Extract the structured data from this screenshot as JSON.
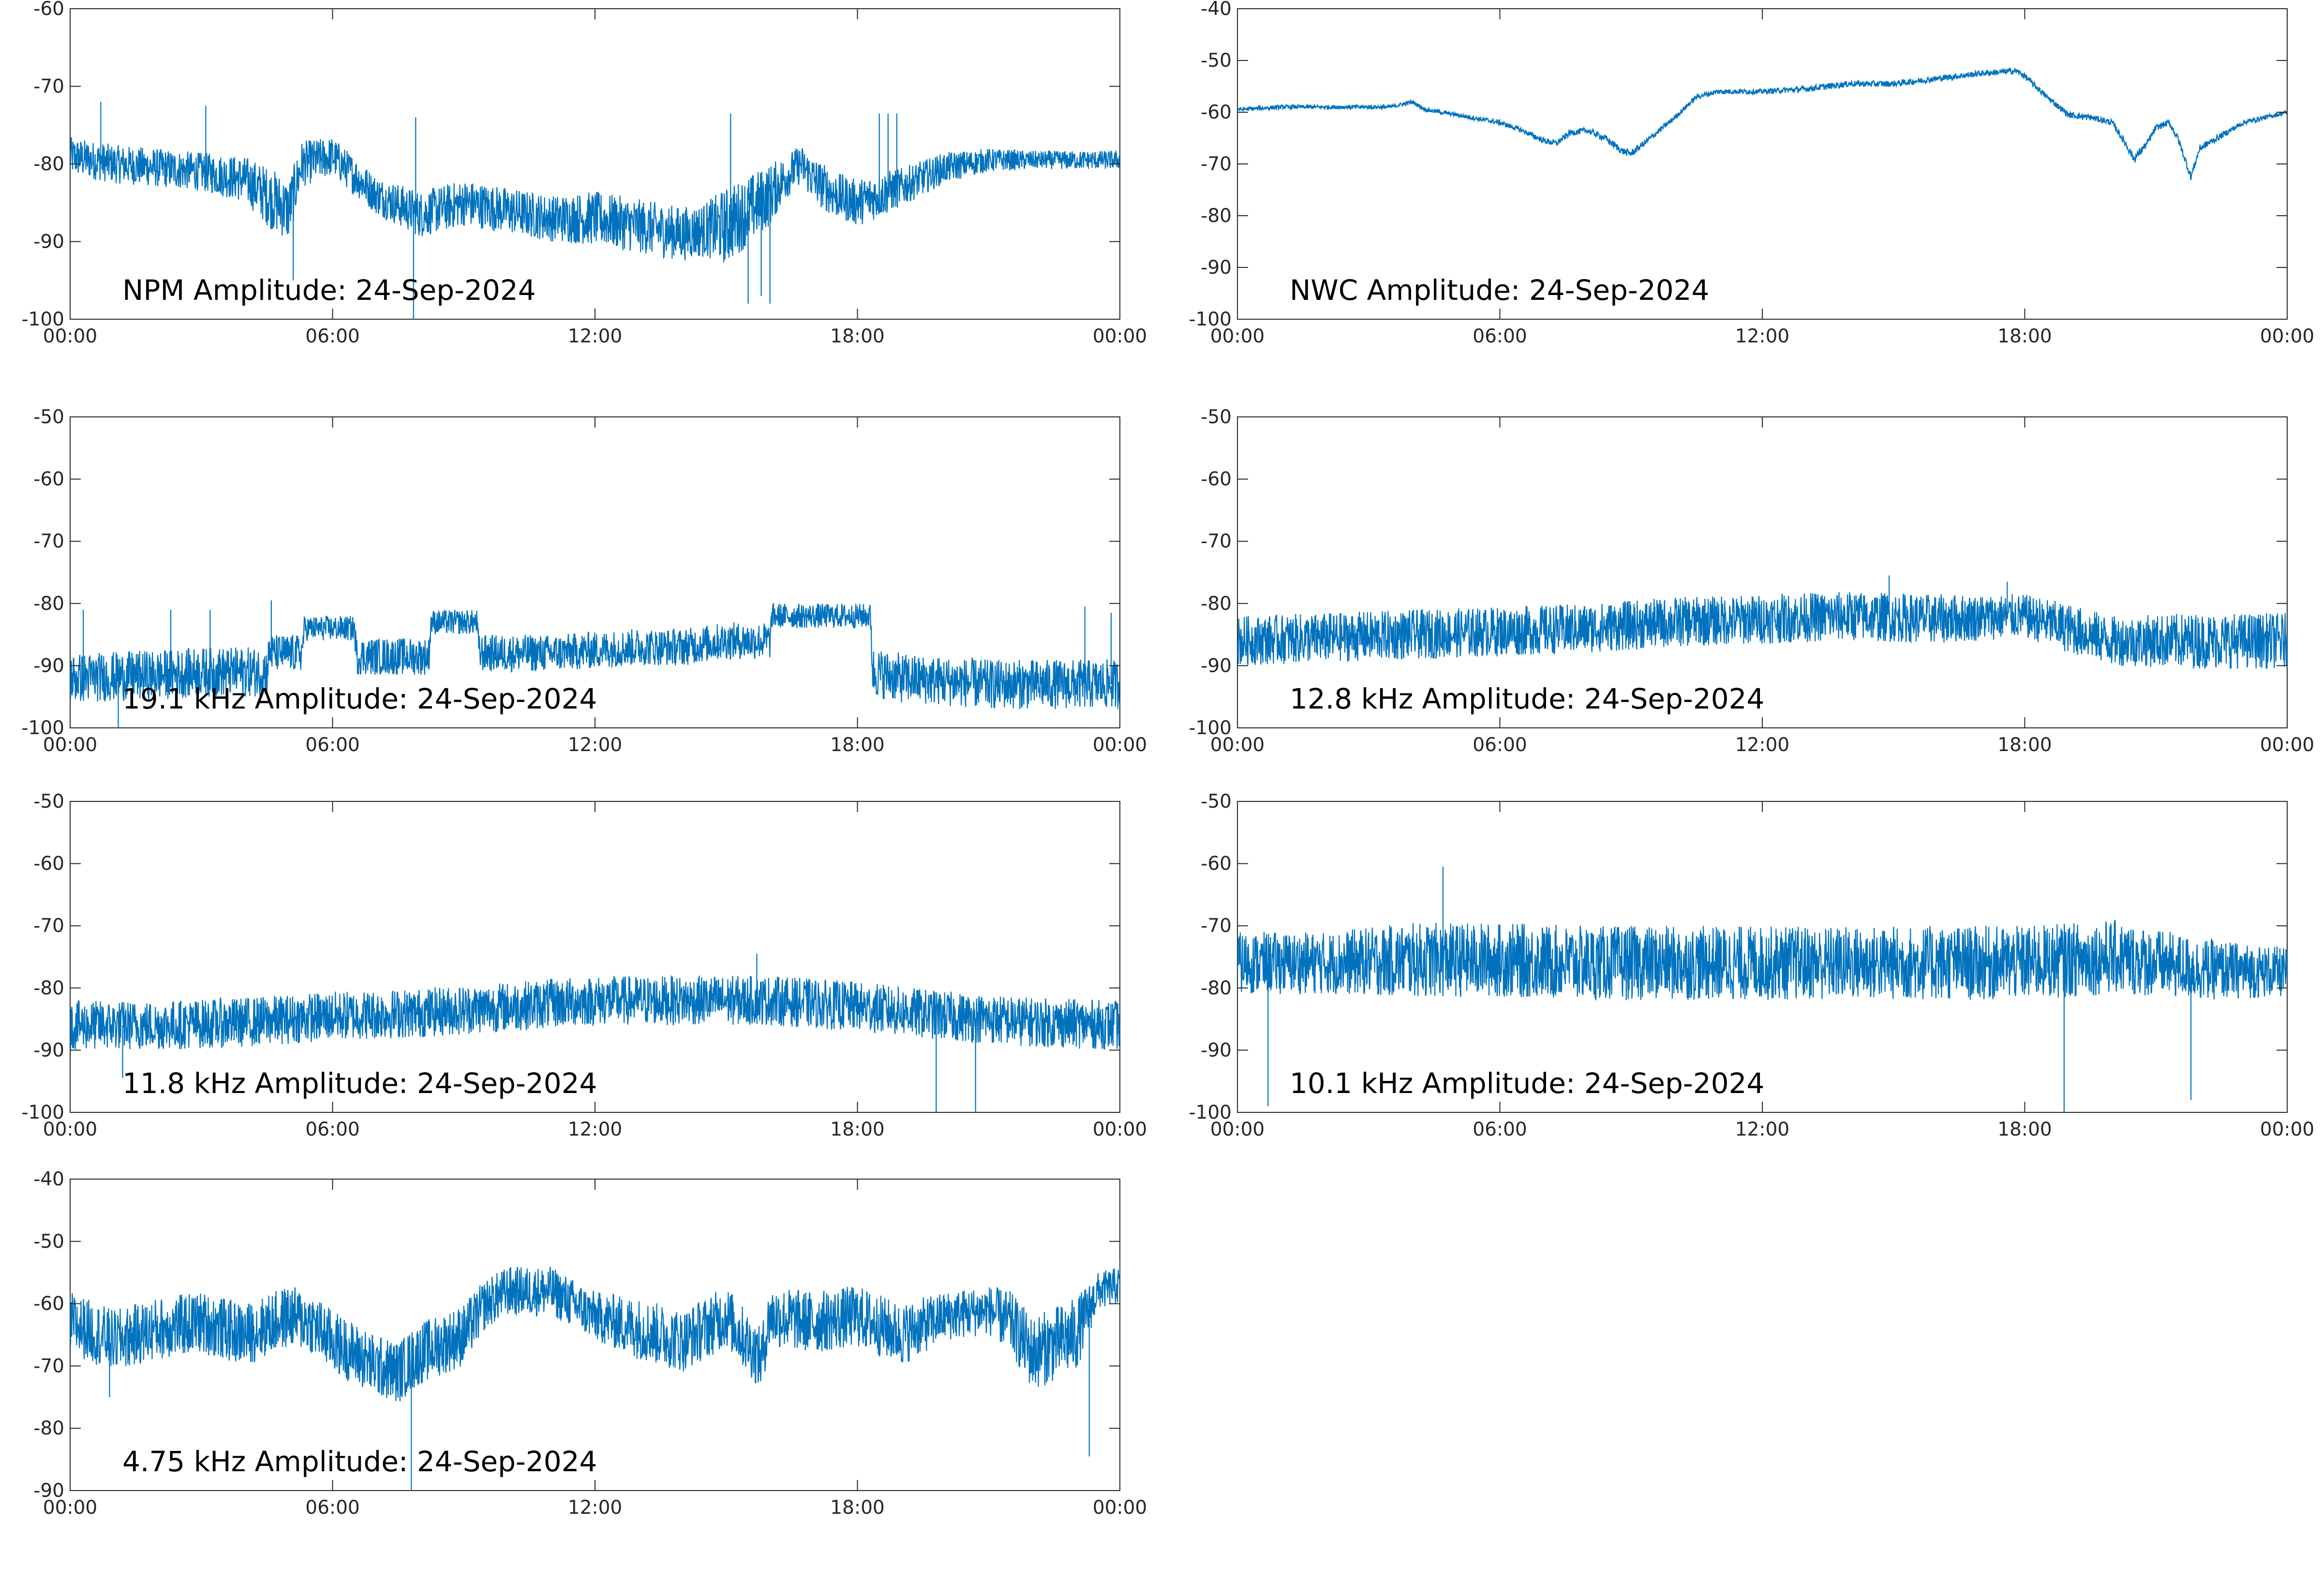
{
  "figure": {
    "series_color": "#0072bd",
    "axis_color": "#262626",
    "background": "#ffffff"
  },
  "chart_data": [
    {
      "type": "line",
      "title": "NPM Amplitude: 24-Sep-2024",
      "xlabel": "",
      "ylabel": "",
      "x_ticks": [
        "00:00",
        "06:00",
        "12:00",
        "18:00",
        "00:00"
      ],
      "y_ticks": [
        "-60",
        "-70",
        "-80",
        "-90",
        "-100"
      ],
      "xlim": [
        0,
        24
      ],
      "ylim": [
        -100,
        -60
      ],
      "grid": false,
      "series": [
        {
          "x": [
            0,
            1,
            2,
            3,
            4,
            4.6,
            5,
            5.3,
            6,
            7,
            8,
            9,
            10,
            11,
            12,
            13,
            14,
            14.5,
            15,
            16,
            16.3,
            16.7,
            17,
            17.5,
            18,
            18.5,
            19,
            20,
            21,
            22,
            23,
            24
          ],
          "y": [
            -79,
            -80,
            -80.5,
            -81,
            -82,
            -84.5,
            -86,
            -80,
            -79,
            -84,
            -86.5,
            -85,
            -86,
            -87,
            -87,
            -88,
            -89,
            -88.5,
            -88,
            -84,
            -82,
            -80,
            -82,
            -84,
            -85,
            -84,
            -83,
            -80.5,
            -79.5,
            -79.5,
            -79.5,
            -79.5
          ],
          "spread": [
            2.5,
            2.5,
            2.5,
            2.5,
            3,
            4,
            4,
            3,
            2.5,
            2.5,
            3,
            3,
            3,
            3,
            3.5,
            3.5,
            3.5,
            3.5,
            5,
            4,
            3,
            2.5,
            3,
            3,
            3,
            3,
            2.5,
            2,
            1.5,
            1.2,
            1.2,
            1.2
          ],
          "spikes": [
            [
              0.7,
              -72
            ],
            [
              3.1,
              -72.5
            ],
            [
              5.1,
              -95
            ],
            [
              7.9,
              -74
            ],
            [
              7.85,
              -100
            ],
            [
              15.1,
              -73.5
            ],
            [
              15.5,
              -98
            ],
            [
              15.8,
              -97
            ],
            [
              16,
              -98
            ],
            [
              18.5,
              -73.5
            ],
            [
              18.7,
              -73.5
            ],
            [
              18.9,
              -73.5
            ]
          ]
        }
      ]
    },
    {
      "type": "line",
      "title": "NWC Amplitude: 24-Sep-2024",
      "xlabel": "",
      "ylabel": "",
      "x_ticks": [
        "00:00",
        "06:00",
        "12:00",
        "18:00",
        "00:00"
      ],
      "y_ticks": [
        "-40",
        "-50",
        "-60",
        "-70",
        "-80",
        "-90",
        "-100"
      ],
      "xlim": [
        0,
        24
      ],
      "ylim": [
        -100,
        -40
      ],
      "grid": false,
      "series": [
        {
          "x": [
            0,
            1,
            2,
            3,
            3.5,
            4,
            4.3,
            5,
            6,
            6.5,
            7,
            7.3,
            7.6,
            8,
            8.4,
            8.8,
            9,
            9.3,
            10,
            10.5,
            11,
            12,
            13,
            14,
            15,
            16,
            17,
            17.8,
            18,
            18.5,
            19,
            19.5,
            20,
            20.3,
            20.5,
            20.8,
            21,
            21.3,
            21.5,
            21.8,
            22,
            23,
            24
          ],
          "y": [
            -59.5,
            -59,
            -59,
            -59,
            -59,
            -58,
            -59.5,
            -60.5,
            -62,
            -63.5,
            -65.5,
            -66,
            -64,
            -63.5,
            -65,
            -67.5,
            -68,
            -66,
            -61,
            -57,
            -56,
            -56,
            -55.5,
            -54.5,
            -54.5,
            -53.5,
            -52.5,
            -52,
            -53,
            -57,
            -60.5,
            -61,
            -62,
            -66,
            -69,
            -66,
            -63,
            -62,
            -65,
            -72.5,
            -67,
            -62,
            -60
          ],
          "spread": [
            0.4,
            0.4,
            0.4,
            0.4,
            0.4,
            0.4,
            0.4,
            0.4,
            0.5,
            0.5,
            0.6,
            0.6,
            0.6,
            0.6,
            0.7,
            0.7,
            0.7,
            0.6,
            0.5,
            0.5,
            0.5,
            0.5,
            0.6,
            0.6,
            0.6,
            0.6,
            0.6,
            0.6,
            0.6,
            0.6,
            0.6,
            0.6,
            0.6,
            0.7,
            0.8,
            0.7,
            0.6,
            0.6,
            0.7,
            0.8,
            0.7,
            0.5,
            0.4
          ],
          "spikes": []
        }
      ]
    },
    {
      "type": "line",
      "title": "19.1 kHz Amplitude: 24-Sep-2024",
      "xlabel": "",
      "ylabel": "",
      "x_ticks": [
        "00:00",
        "06:00",
        "12:00",
        "18:00",
        "00:00"
      ],
      "y_ticks": [
        "-50",
        "-60",
        "-70",
        "-80",
        "-90",
        "-100"
      ],
      "xlim": [
        0,
        24
      ],
      "ylim": [
        -100,
        -50
      ],
      "grid": false,
      "series": [
        {
          "x": [
            0,
            2,
            3,
            4.5,
            4.55,
            5.3,
            5.35,
            6.5,
            6.55,
            8.2,
            8.25,
            9.3,
            9.35,
            11,
            12,
            13,
            14,
            15,
            16,
            16.05,
            17,
            18.3,
            18.35,
            19,
            20,
            21,
            22,
            23,
            24
          ],
          "y": [
            -92,
            -91.5,
            -91,
            -91,
            -88,
            -88,
            -84,
            -84,
            -88.5,
            -88.5,
            -83,
            -83,
            -88,
            -88,
            -87.5,
            -87,
            -87,
            -86,
            -86,
            -82,
            -82,
            -82,
            -91,
            -92,
            -92.5,
            -93,
            -93,
            -93,
            -93
          ],
          "spread": [
            4,
            4,
            4,
            4,
            3,
            3,
            2,
            2,
            3,
            3,
            2,
            2,
            3,
            3,
            3,
            3,
            3,
            3,
            3,
            2,
            2,
            2,
            4,
            4,
            4,
            4,
            4,
            4,
            4
          ],
          "spikes": [
            [
              0.3,
              -81
            ],
            [
              1.1,
              -100
            ],
            [
              2.3,
              -81
            ],
            [
              3.2,
              -81
            ],
            [
              4.6,
              -79.5
            ],
            [
              23.2,
              -80.5
            ],
            [
              23.8,
              -81.5
            ]
          ]
        }
      ]
    },
    {
      "type": "line",
      "title": "12.8 kHz Amplitude: 24-Sep-2024",
      "xlabel": "",
      "ylabel": "",
      "x_ticks": [
        "00:00",
        "06:00",
        "12:00",
        "18:00",
        "00:00"
      ],
      "y_ticks": [
        "-50",
        "-60",
        "-70",
        "-80",
        "-90",
        "-100"
      ],
      "xlim": [
        0,
        24
      ],
      "ylim": [
        -100,
        -50
      ],
      "grid": false,
      "series": [
        {
          "x": [
            0,
            2,
            4,
            6,
            8,
            10,
            12,
            14,
            16,
            18,
            19,
            20,
            22,
            24
          ],
          "y": [
            -86,
            -85.5,
            -85,
            -84.5,
            -84,
            -83,
            -82.5,
            -82,
            -82.5,
            -82,
            -84,
            -86,
            -86,
            -86
          ],
          "spread": [
            4,
            4,
            4,
            4,
            4,
            4,
            4,
            4,
            4,
            3.5,
            4,
            4,
            4.5,
            4.5
          ],
          "spikes": [
            [
              14.9,
              -75.5
            ],
            [
              17.6,
              -76.5
            ]
          ]
        }
      ]
    },
    {
      "type": "line",
      "title": "11.8 kHz Amplitude: 24-Sep-2024",
      "xlabel": "",
      "ylabel": "",
      "x_ticks": [
        "00:00",
        "06:00",
        "12:00",
        "18:00",
        "00:00"
      ],
      "y_ticks": [
        "-50",
        "-60",
        "-70",
        "-80",
        "-90",
        "-100"
      ],
      "xlim": [
        0,
        24
      ],
      "ylim": [
        -100,
        -50
      ],
      "grid": false,
      "series": [
        {
          "x": [
            0,
            2,
            4,
            6,
            8,
            10,
            12,
            14,
            16,
            18,
            20,
            22,
            24
          ],
          "y": [
            -86,
            -86,
            -85.5,
            -84.5,
            -84,
            -83,
            -82,
            -82,
            -82,
            -83,
            -84.5,
            -85.5,
            -86
          ],
          "spread": [
            4,
            4,
            4,
            4,
            4,
            4,
            4,
            4,
            4,
            4,
            4,
            4,
            4
          ],
          "spikes": [
            [
              15.7,
              -74.5
            ],
            [
              19.8,
              -100
            ],
            [
              20.7,
              -100
            ],
            [
              1.2,
              -94.5
            ]
          ]
        }
      ]
    },
    {
      "type": "line",
      "title": "10.1 kHz Amplitude: 24-Sep-2024",
      "xlabel": "",
      "ylabel": "",
      "x_ticks": [
        "00:00",
        "06:00",
        "12:00",
        "18:00",
        "00:00"
      ],
      "y_ticks": [
        "-50",
        "-60",
        "-70",
        "-80",
        "-90",
        "-100"
      ],
      "xlim": [
        0,
        24
      ],
      "ylim": [
        -100,
        -50
      ],
      "grid": false,
      "series": [
        {
          "x": [
            0,
            2,
            4,
            6,
            8,
            10,
            12,
            14,
            16,
            18,
            20,
            22,
            24
          ],
          "y": [
            -76,
            -76,
            -75.5,
            -75.5,
            -76,
            -76,
            -76,
            -76,
            -76,
            -76,
            -75,
            -77,
            -77.5
          ],
          "spread": [
            5,
            5,
            6,
            6,
            6,
            6,
            6,
            6,
            6,
            6,
            6,
            5,
            4
          ],
          "spikes": [
            [
              0.7,
              -99
            ],
            [
              4.7,
              -60.5
            ],
            [
              18.9,
              -100
            ],
            [
              21.8,
              -98
            ]
          ]
        }
      ]
    },
    {
      "type": "line",
      "title": "4.75 kHz Amplitude: 24-Sep-2024",
      "xlabel": "",
      "ylabel": "",
      "x_ticks": [
        "00:00",
        "06:00",
        "12:00",
        "18:00",
        "00:00"
      ],
      "y_ticks": [
        "-40",
        "-50",
        "-60",
        "-70",
        "-80",
        "-90"
      ],
      "xlim": [
        0,
        24
      ],
      "ylim": [
        -90,
        -40
      ],
      "grid": false,
      "series": [
        {
          "x": [
            0,
            1,
            2,
            3,
            4,
            5,
            5.5,
            6,
            7,
            7.5,
            8,
            9,
            9.5,
            10,
            11,
            12,
            13,
            14,
            15,
            15.8,
            16,
            17,
            18,
            19,
            20,
            21,
            21.5,
            22,
            23,
            23.5,
            24
          ],
          "y": [
            -63,
            -66,
            -64,
            -63,
            -65,
            -62,
            -63,
            -66,
            -70,
            -71,
            -68,
            -65,
            -60,
            -58,
            -58,
            -62,
            -64,
            -66,
            -62,
            -69,
            -62,
            -63,
            -62,
            -65,
            -62,
            -61,
            -63,
            -68,
            -65,
            -58,
            -57
          ],
          "spread": [
            5,
            5,
            5,
            5,
            5,
            5,
            5,
            5,
            5,
            5,
            5,
            5,
            4,
            4,
            4,
            4,
            5,
            5,
            5,
            5,
            5,
            5,
            5,
            5,
            4,
            4,
            5,
            6,
            6,
            3,
            3
          ],
          "spikes": [
            [
              7.8,
              -90
            ],
            [
              23.3,
              -84.5
            ],
            [
              0.9,
              -75
            ],
            [
              24,
              -53
            ]
          ]
        }
      ]
    }
  ]
}
